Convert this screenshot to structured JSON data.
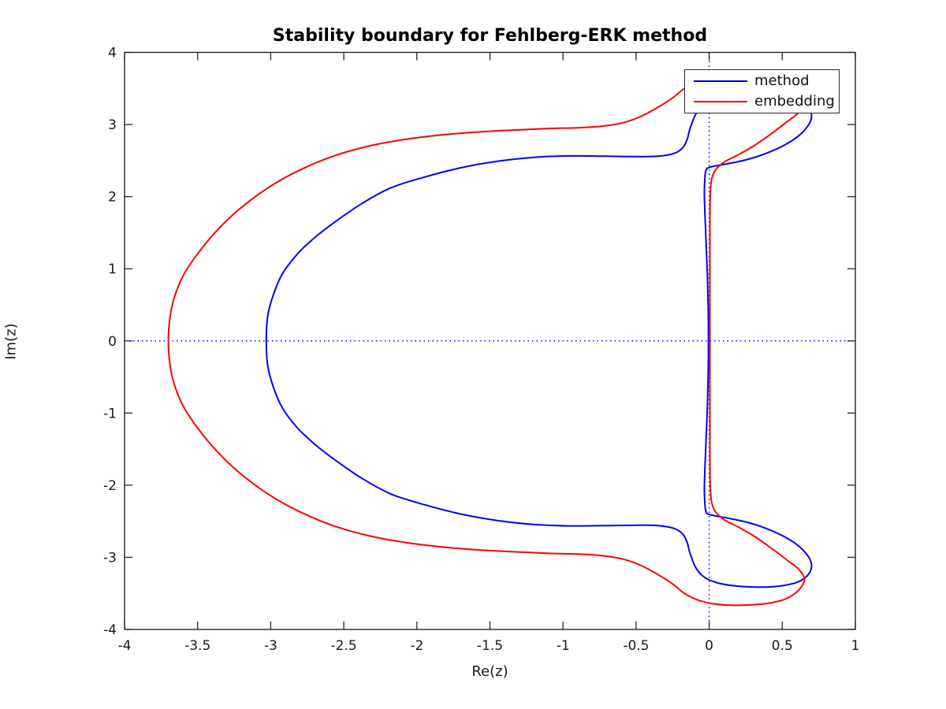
{
  "figure": {
    "background": "#ffffff",
    "axes_color": "#262626",
    "title": "Stability boundary for Fehlberg-ERK method",
    "xlabel": "Re(z)",
    "ylabel": "Im(z)"
  },
  "legend": {
    "position": "top-right-inside",
    "entries": [
      {
        "label": "method",
        "color": "#0000ff"
      },
      {
        "label": "embedding",
        "color": "#ff0000"
      }
    ]
  },
  "zero_lines": {
    "style": "dotted",
    "color": "#0000ff",
    "vertical_at_re": 0,
    "horizontal_at_im": 0
  },
  "chart_data": {
    "type": "line",
    "title": "Stability boundary for Fehlberg-ERK method",
    "xlabel": "Re(z)",
    "ylabel": "Im(z)",
    "xlim": [
      -4,
      1
    ],
    "ylim": [
      -4,
      4
    ],
    "xticks": [
      -4,
      -3.5,
      -3,
      -2.5,
      -2,
      -1.5,
      -1,
      -0.5,
      0,
      0.5,
      1
    ],
    "xtick_labels": [
      "-4",
      "-3.5",
      "-3",
      "-2.5",
      "-2",
      "-1.5",
      "-1",
      "-0.5",
      "0",
      "0.5",
      "1"
    ],
    "yticks": [
      4,
      3,
      2,
      1,
      0,
      -1,
      -2,
      -3,
      -4
    ],
    "ytick_labels": [
      "4",
      "3",
      "2",
      "1",
      "0",
      "-1",
      "-2",
      "-3",
      "-4"
    ],
    "grid": false,
    "box": true,
    "tick_direction": "in",
    "legend_position": "upper right",
    "series": [
      {
        "name": "method",
        "color": "#0000ff",
        "closed": true,
        "real_axis_crossing": -3.03,
        "points": [
          [
            -3.03,
            0.0
          ],
          [
            -3.02,
            0.35
          ],
          [
            -2.98,
            0.65
          ],
          [
            -2.92,
            0.93
          ],
          [
            -2.82,
            1.2
          ],
          [
            -2.7,
            1.43
          ],
          [
            -2.56,
            1.65
          ],
          [
            -2.38,
            1.9
          ],
          [
            -2.18,
            2.12
          ],
          [
            -1.95,
            2.27
          ],
          [
            -1.7,
            2.4
          ],
          [
            -1.45,
            2.49
          ],
          [
            -1.2,
            2.545
          ],
          [
            -0.95,
            2.565
          ],
          [
            -0.7,
            2.56
          ],
          [
            -0.5,
            2.555
          ],
          [
            -0.35,
            2.56
          ],
          [
            -0.24,
            2.6
          ],
          [
            -0.18,
            2.68
          ],
          [
            -0.15,
            2.8
          ],
          [
            -0.13,
            2.95
          ],
          [
            -0.09,
            3.15
          ],
          [
            -0.03,
            3.28
          ],
          [
            0.05,
            3.35
          ],
          [
            0.15,
            3.39
          ],
          [
            0.28,
            3.41
          ],
          [
            0.42,
            3.41
          ],
          [
            0.54,
            3.38
          ],
          [
            0.63,
            3.32
          ],
          [
            0.685,
            3.22
          ],
          [
            0.7,
            3.1
          ],
          [
            0.675,
            2.98
          ],
          [
            0.61,
            2.84
          ],
          [
            0.51,
            2.71
          ],
          [
            0.39,
            2.6
          ],
          [
            0.27,
            2.52
          ],
          [
            0.15,
            2.465
          ],
          [
            0.04,
            2.425
          ],
          [
            -0.012,
            2.395
          ],
          [
            -0.026,
            2.33
          ],
          [
            -0.031,
            2.2
          ],
          [
            -0.033,
            2.04
          ],
          [
            -0.03,
            1.82
          ],
          [
            -0.025,
            1.55
          ],
          [
            -0.019,
            1.25
          ],
          [
            -0.013,
            0.95
          ],
          [
            -0.009,
            0.65
          ],
          [
            -0.006,
            0.35
          ],
          [
            -0.005,
            0.0
          ],
          [
            -0.006,
            -0.35
          ],
          [
            -0.009,
            -0.65
          ],
          [
            -0.013,
            -0.95
          ],
          [
            -0.019,
            -1.25
          ],
          [
            -0.025,
            -1.55
          ],
          [
            -0.03,
            -1.82
          ],
          [
            -0.033,
            -2.04
          ],
          [
            -0.031,
            -2.2
          ],
          [
            -0.026,
            -2.33
          ],
          [
            -0.012,
            -2.395
          ],
          [
            0.04,
            -2.425
          ],
          [
            0.15,
            -2.465
          ],
          [
            0.27,
            -2.52
          ],
          [
            0.39,
            -2.6
          ],
          [
            0.51,
            -2.71
          ],
          [
            0.61,
            -2.84
          ],
          [
            0.675,
            -2.98
          ],
          [
            0.7,
            -3.1
          ],
          [
            0.685,
            -3.22
          ],
          [
            0.63,
            -3.32
          ],
          [
            0.54,
            -3.38
          ],
          [
            0.42,
            -3.41
          ],
          [
            0.28,
            -3.41
          ],
          [
            0.15,
            -3.39
          ],
          [
            0.05,
            -3.35
          ],
          [
            -0.03,
            -3.28
          ],
          [
            -0.09,
            -3.15
          ],
          [
            -0.13,
            -2.95
          ],
          [
            -0.15,
            -2.8
          ],
          [
            -0.18,
            -2.68
          ],
          [
            -0.24,
            -2.6
          ],
          [
            -0.35,
            -2.56
          ],
          [
            -0.5,
            -2.555
          ],
          [
            -0.7,
            -2.56
          ],
          [
            -0.95,
            -2.565
          ],
          [
            -1.2,
            -2.545
          ],
          [
            -1.45,
            -2.49
          ],
          [
            -1.7,
            -2.4
          ],
          [
            -1.95,
            -2.27
          ],
          [
            -2.18,
            -2.12
          ],
          [
            -2.38,
            -1.9
          ],
          [
            -2.56,
            -1.65
          ],
          [
            -2.7,
            -1.43
          ],
          [
            -2.82,
            -1.2
          ],
          [
            -2.92,
            -0.93
          ],
          [
            -2.98,
            -0.65
          ],
          [
            -3.02,
            -0.35
          ]
        ]
      },
      {
        "name": "embedding",
        "color": "#ff0000",
        "closed": true,
        "real_axis_crossing": -3.7,
        "points": [
          [
            -3.7,
            0.0
          ],
          [
            -3.69,
            0.32
          ],
          [
            -3.66,
            0.6
          ],
          [
            -3.6,
            0.9
          ],
          [
            -3.51,
            1.18
          ],
          [
            -3.39,
            1.48
          ],
          [
            -3.23,
            1.8
          ],
          [
            -3.02,
            2.12
          ],
          [
            -2.8,
            2.37
          ],
          [
            -2.56,
            2.57
          ],
          [
            -2.31,
            2.71
          ],
          [
            -2.06,
            2.8
          ],
          [
            -1.81,
            2.86
          ],
          [
            -1.56,
            2.9
          ],
          [
            -1.31,
            2.925
          ],
          [
            -1.1,
            2.945
          ],
          [
            -0.9,
            2.955
          ],
          [
            -0.72,
            2.98
          ],
          [
            -0.58,
            3.03
          ],
          [
            -0.46,
            3.12
          ],
          [
            -0.35,
            3.24
          ],
          [
            -0.25,
            3.37
          ],
          [
            -0.17,
            3.5
          ],
          [
            -0.08,
            3.59
          ],
          [
            0.03,
            3.645
          ],
          [
            0.15,
            3.665
          ],
          [
            0.28,
            3.66
          ],
          [
            0.41,
            3.635
          ],
          [
            0.52,
            3.58
          ],
          [
            0.6,
            3.48
          ],
          [
            0.645,
            3.36
          ],
          [
            0.65,
            3.28
          ],
          [
            0.61,
            3.16
          ],
          [
            0.54,
            3.05
          ],
          [
            0.43,
            2.88
          ],
          [
            0.31,
            2.71
          ],
          [
            0.19,
            2.57
          ],
          [
            0.1,
            2.475
          ],
          [
            0.04,
            2.36
          ],
          [
            0.015,
            2.22
          ],
          [
            0.007,
            2.0
          ],
          [
            0.005,
            1.7
          ],
          [
            0.005,
            1.35
          ],
          [
            0.005,
            1.0
          ],
          [
            0.005,
            0.65
          ],
          [
            0.005,
            0.32
          ],
          [
            0.005,
            0.0
          ],
          [
            0.005,
            -0.32
          ],
          [
            0.005,
            -0.65
          ],
          [
            0.005,
            -1.0
          ],
          [
            0.005,
            -1.35
          ],
          [
            0.005,
            -1.7
          ],
          [
            0.007,
            -2.0
          ],
          [
            0.015,
            -2.22
          ],
          [
            0.04,
            -2.36
          ],
          [
            0.1,
            -2.475
          ],
          [
            0.19,
            -2.57
          ],
          [
            0.31,
            -2.71
          ],
          [
            0.43,
            -2.88
          ],
          [
            0.54,
            -3.05
          ],
          [
            0.61,
            -3.16
          ],
          [
            0.65,
            -3.28
          ],
          [
            0.645,
            -3.36
          ],
          [
            0.6,
            -3.48
          ],
          [
            0.52,
            -3.58
          ],
          [
            0.41,
            -3.635
          ],
          [
            0.28,
            -3.66
          ],
          [
            0.15,
            -3.665
          ],
          [
            0.03,
            -3.645
          ],
          [
            -0.08,
            -3.59
          ],
          [
            -0.17,
            -3.5
          ],
          [
            -0.25,
            -3.37
          ],
          [
            -0.35,
            -3.24
          ],
          [
            -0.46,
            -3.12
          ],
          [
            -0.58,
            -3.03
          ],
          [
            -0.72,
            -2.98
          ],
          [
            -0.9,
            -2.955
          ],
          [
            -1.1,
            -2.945
          ],
          [
            -1.31,
            -2.925
          ],
          [
            -1.56,
            -2.9
          ],
          [
            -1.81,
            -2.86
          ],
          [
            -2.06,
            -2.8
          ],
          [
            -2.31,
            -2.71
          ],
          [
            -2.56,
            -2.57
          ],
          [
            -2.8,
            -2.37
          ],
          [
            -3.02,
            -2.12
          ],
          [
            -3.23,
            -1.8
          ],
          [
            -3.39,
            -1.48
          ],
          [
            -3.51,
            -1.18
          ],
          [
            -3.6,
            -0.9
          ],
          [
            -3.66,
            -0.6
          ],
          [
            -3.69,
            -0.32
          ]
        ]
      }
    ]
  }
}
